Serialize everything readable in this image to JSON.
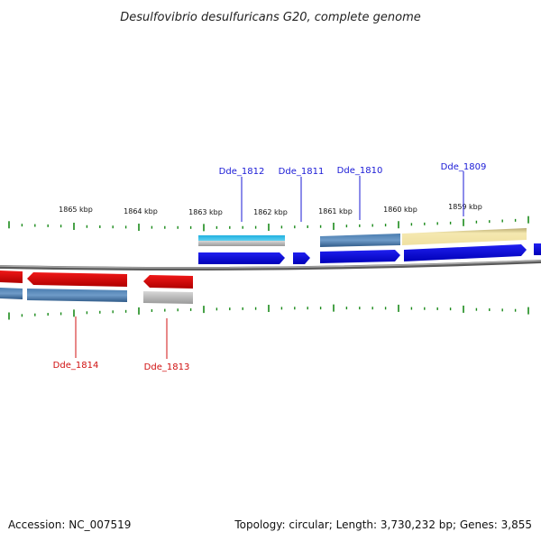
{
  "title": "Desulfovibrio desulfuricans G20, complete genome",
  "footer": {
    "accession": "Accession: NC_007519",
    "topology": "Topology: circular; Length: 3,730,232 bp; Genes: 3,855"
  },
  "colors": {
    "forward_cds": "#1010e0",
    "reverse_cds": "#e01010",
    "backbone": "#808080",
    "tick": "#1a8a1a",
    "gene_bar_blue": "#3e6fa0",
    "gene_bar_cyan": "#20b8e0",
    "gene_bar_grey": "#b0b0b0",
    "gene_bar_yellow": "#f0e0a0",
    "label_top": "#1a1ad6",
    "label_bottom": "#d01010"
  },
  "scale": {
    "labels": [
      "1865 kbp",
      "1864 kbp",
      "1863 kbp",
      "1862 kbp",
      "1861 kbp",
      "1860 kbp",
      "1859 kbp"
    ]
  },
  "genes_top": [
    {
      "name": "Dde_1812"
    },
    {
      "name": "Dde_1811"
    },
    {
      "name": "Dde_1810"
    },
    {
      "name": "Dde_1809"
    }
  ],
  "genes_bottom": [
    {
      "name": "Dde_1814"
    },
    {
      "name": "Dde_1813"
    }
  ]
}
